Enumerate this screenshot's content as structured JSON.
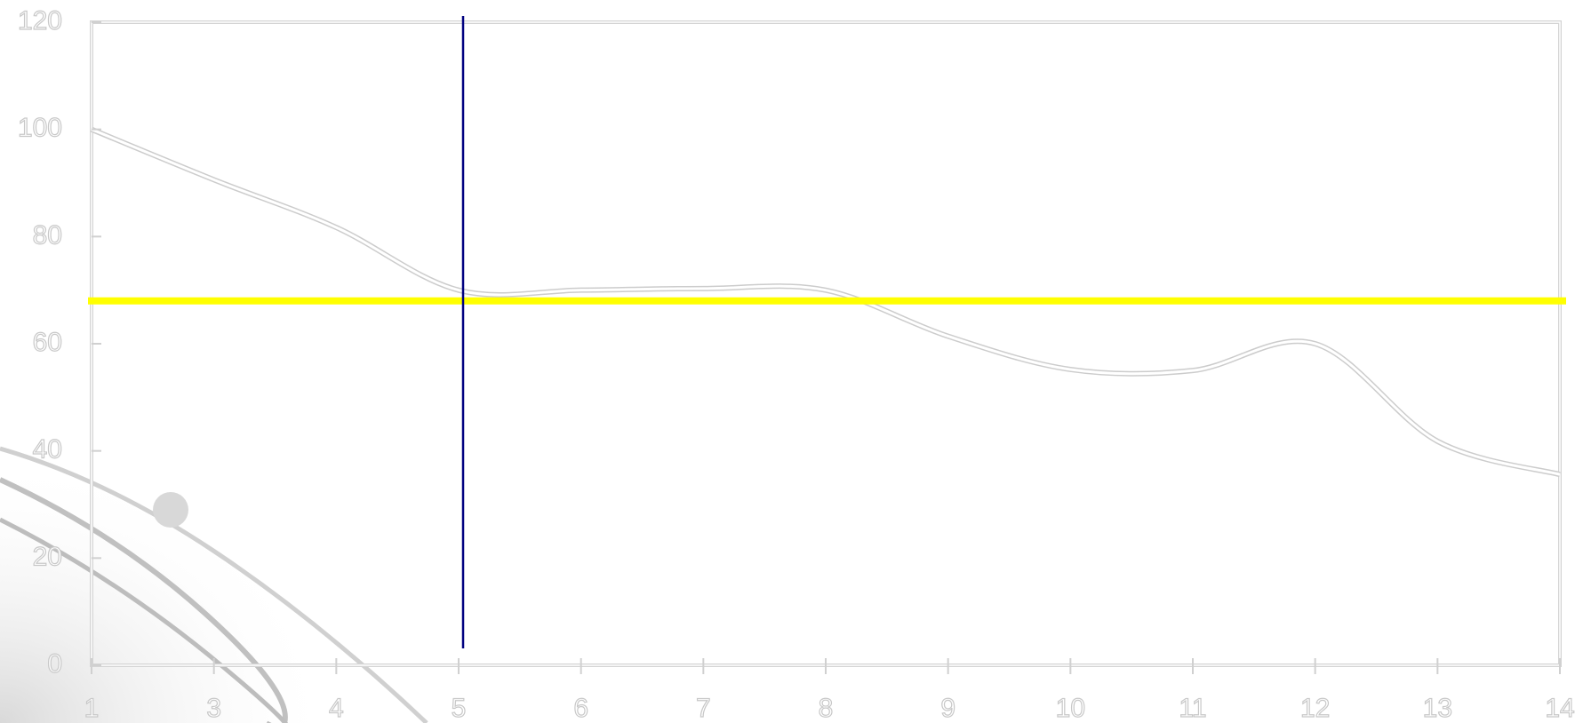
{
  "chart_data": {
    "type": "line",
    "categories": [
      "1",
      "3",
      "4",
      "5",
      "6",
      "7",
      "8",
      "9",
      "10",
      "11",
      "12",
      "13",
      "14"
    ],
    "series": [
      {
        "color": "#cccccc",
        "values": [
          100,
          90.6,
          81.7,
          70,
          70,
          70.3,
          70,
          61.4,
          55.2,
          55,
          60,
          41.8,
          35.6
        ]
      }
    ],
    "ylim": [
      0,
      120
    ],
    "yticks": [
      0,
      20,
      40,
      60,
      80,
      100,
      120
    ],
    "reference_line": {
      "value": 68,
      "color": "#ffff00"
    }
  }
}
